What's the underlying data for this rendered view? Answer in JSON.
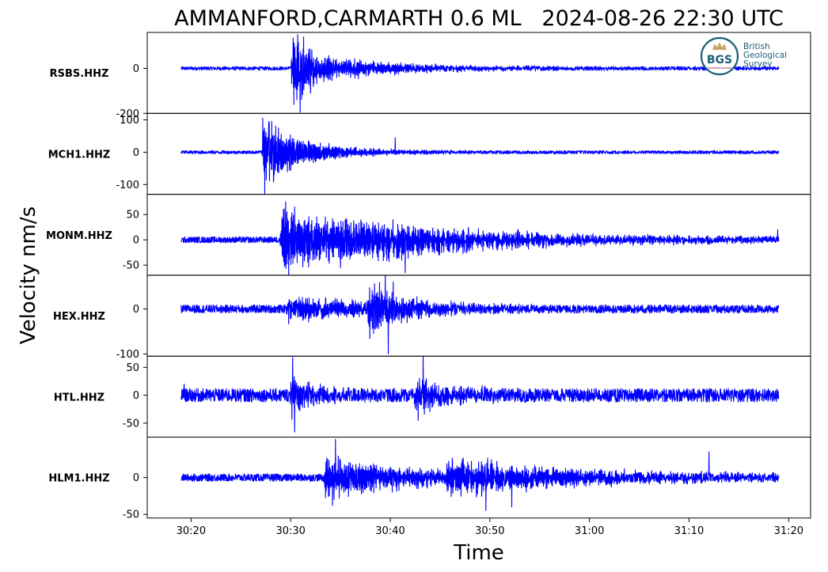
{
  "chart_data": {
    "type": "line",
    "title": "AMMANFORD,CARMARTH 0.6 ML   2024-08-26 22:30 UTC",
    "xlabel": "Time",
    "ylabel": "Velocity nm/s",
    "x_range": [
      "30:15.6",
      "31:22.2"
    ],
    "x_ticks": [
      "30:20",
      "30:30",
      "30:40",
      "30:50",
      "31:00",
      "31:10",
      "31:20"
    ],
    "x_tick_seconds": [
      20,
      30,
      40,
      50,
      60,
      70,
      80
    ],
    "x_data_range_seconds": [
      19,
      79
    ],
    "series_color": "#0000ff",
    "grid": false,
    "logo": {
      "text": "BGS",
      "lines": [
        "British",
        "Geological",
        "Survey"
      ],
      "colors": {
        "ring": "#1a5e78",
        "text": "#1a5e78",
        "crown": "#c8a560",
        "name": "#1a5e78"
      }
    },
    "traces": [
      {
        "name": "RSBS.HHZ",
        "ylim": [
          -200,
          160
        ],
        "yticks": [
          0,
          -200
        ],
        "ytick_labels": [
          "0",
          "-200"
        ],
        "noise": 8,
        "events": [
          {
            "t": 30.0,
            "amp": 170,
            "decay": 3.0,
            "freq": 17
          },
          {
            "t": 35.5,
            "amp": 30,
            "decay": 10,
            "freq": 9
          }
        ],
        "peaks": [
          [
            30.7,
            150
          ],
          [
            30.95,
            -195
          ],
          [
            31.3,
            140
          ],
          [
            32.0,
            -110
          ]
        ]
      },
      {
        "name": "MCH1.HHZ",
        "ylim": [
          -130,
          120
        ],
        "yticks": [
          100,
          0,
          -100
        ],
        "ytick_labels": [
          "100",
          "0",
          "-100"
        ],
        "noise": 5,
        "events": [
          {
            "t": 27.1,
            "amp": 100,
            "decay": 4.5,
            "freq": 15
          }
        ],
        "peaks": [
          [
            27.2,
            105
          ],
          [
            27.4,
            -130
          ],
          [
            27.8,
            95
          ],
          [
            28.3,
            -80
          ],
          [
            40.5,
            45
          ]
        ]
      },
      {
        "name": "MONM.HHZ",
        "ylim": [
          -70,
          90
        ],
        "yticks": [
          50,
          0,
          -50
        ],
        "ytick_labels": [
          "50",
          "0",
          "-50"
        ],
        "noise": 6,
        "events": [
          {
            "t": 28.9,
            "amp": 55,
            "decay": 15,
            "freq": 14
          },
          {
            "t": 38.0,
            "amp": 25,
            "decay": 10,
            "freq": 12
          }
        ],
        "peaks": [
          [
            29.5,
            75
          ],
          [
            29.8,
            -70
          ],
          [
            30.4,
            65
          ],
          [
            35.0,
            -55
          ],
          [
            41.5,
            -65
          ],
          [
            78.9,
            20
          ]
        ]
      },
      {
        "name": "HEX.HHZ",
        "ylim": [
          -105,
          75
        ],
        "yticks": [
          0,
          -100
        ],
        "ytick_labels": [
          "0",
          "-100"
        ],
        "noise": 9,
        "events": [
          {
            "t": 29.5,
            "amp": 25,
            "decay": 9,
            "freq": 12
          },
          {
            "t": 37.6,
            "amp": 55,
            "decay": 4.5,
            "freq": 16
          }
        ],
        "peaks": [
          [
            39.5,
            75
          ],
          [
            39.8,
            -100
          ],
          [
            40.3,
            60
          ],
          [
            38.5,
            -45
          ]
        ]
      },
      {
        "name": "HTL.HHZ",
        "ylim": [
          -75,
          70
        ],
        "yticks": [
          50,
          0,
          -50
        ],
        "ytick_labels": [
          "50",
          "0",
          "-50"
        ],
        "noise": 12,
        "events": [
          {
            "t": 29.9,
            "amp": 35,
            "decay": 2.5,
            "freq": 16
          },
          {
            "t": 42.3,
            "amp": 30,
            "decay": 4,
            "freq": 13
          }
        ],
        "peaks": [
          [
            30.2,
            68
          ],
          [
            30.4,
            -66
          ],
          [
            43.3,
            70
          ],
          [
            42.8,
            -45
          ],
          [
            19.3,
            20
          ]
        ]
      },
      {
        "name": "HLM1.HHZ",
        "ylim": [
          -55,
          55
        ],
        "yticks": [
          0,
          -50
        ],
        "ytick_labels": [
          "0",
          "-50"
        ],
        "noise": 5,
        "events": [
          {
            "t": 33.3,
            "amp": 28,
            "decay": 9,
            "freq": 13
          },
          {
            "t": 45.5,
            "amp": 22,
            "decay": 15,
            "freq": 11
          }
        ],
        "peaks": [
          [
            34.5,
            52
          ],
          [
            34.2,
            -38
          ],
          [
            49.6,
            -45
          ],
          [
            52.2,
            -40
          ],
          [
            72.0,
            35
          ]
        ]
      }
    ]
  }
}
